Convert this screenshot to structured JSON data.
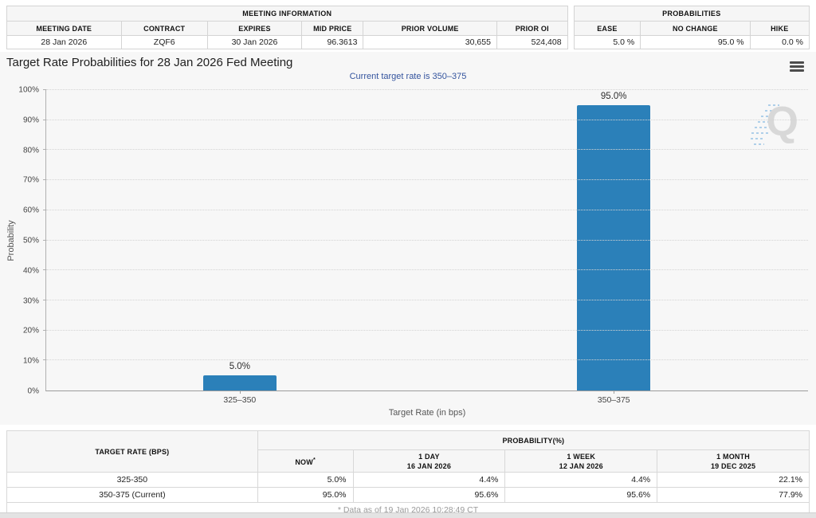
{
  "meeting_information": {
    "title": "MEETING INFORMATION",
    "columns": [
      "MEETING DATE",
      "CONTRACT",
      "EXPIRES",
      "MID PRICE",
      "PRIOR VOLUME",
      "PRIOR OI"
    ],
    "values": [
      "28 Jan 2026",
      "ZQF6",
      "30 Jan 2026",
      "96.3613",
      "30,655",
      "524,408"
    ]
  },
  "probabilities_summary": {
    "title": "PROBABILITIES",
    "columns": [
      "EASE",
      "NO CHANGE",
      "HIKE"
    ],
    "values": [
      "5.0 %",
      "95.0 %",
      "0.0 %"
    ]
  },
  "chart": {
    "title": "Target Rate Probabilities for 28 Jan 2026 Fed Meeting",
    "subtitle": "Current target rate is 350–375",
    "watermark_letter": "Q"
  },
  "chart_data": {
    "type": "bar",
    "categories": [
      "325–350",
      "350–375"
    ],
    "values": [
      5.0,
      95.0
    ],
    "bar_labels": [
      "5.0%",
      "95.0%"
    ],
    "title": "Target Rate Probabilities for 28 Jan 2026 Fed Meeting",
    "subtitle": "Current target rate is 350–375",
    "xlabel": "Target Rate (in bps)",
    "ylabel": "Probability",
    "ylim": [
      0,
      100
    ],
    "ytick_step": 10,
    "ytick_labels": [
      "0%",
      "10%",
      "20%",
      "30%",
      "40%",
      "50%",
      "60%",
      "70%",
      "80%",
      "90%",
      "100%"
    ],
    "grid": "dotted-horizontal",
    "legend": "none",
    "bar_color": "#2b80b9",
    "x_positions_pct": [
      25.4,
      74.5
    ]
  },
  "history_table": {
    "col1_header": "TARGET RATE (BPS)",
    "group_header": "PROBABILITY(%)",
    "sub_headers": [
      {
        "label": "NOW",
        "sup": "*",
        "date": ""
      },
      {
        "label": "1 DAY",
        "date": "16 JAN 2026"
      },
      {
        "label": "1 WEEK",
        "date": "12 JAN 2026"
      },
      {
        "label": "1 MONTH",
        "date": "19 DEC 2025"
      }
    ],
    "rows": [
      {
        "rate": "325-350",
        "now": "5.0%",
        "day": "4.4%",
        "week": "4.4%",
        "month": "22.1%"
      },
      {
        "rate": "350-375 (Current)",
        "now": "95.0%",
        "day": "95.6%",
        "week": "95.6%",
        "month": "77.9%"
      }
    ],
    "footnote": "* Data as of 19 Jan 2026 10:28:49 CT"
  },
  "colors": {
    "bar": "#2b80b9",
    "subtitle_text": "#34549e",
    "now_highlight": "#fafad2",
    "header_bg": "#f6f6f6",
    "chart_bg": "#f7f7f7"
  }
}
